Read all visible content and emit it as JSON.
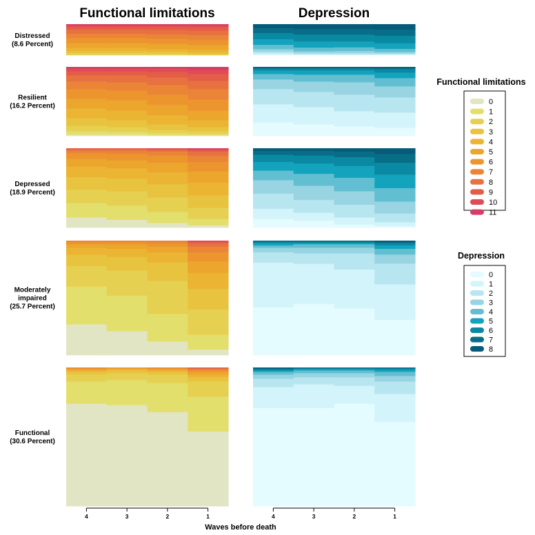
{
  "chart_data": {
    "type": "stacked-area-grid",
    "column_titles": [
      "Functional limitations",
      "Depression"
    ],
    "x_title": "Waves before death",
    "x_ticks": [
      "4",
      "3",
      "2",
      "1"
    ],
    "rows": [
      {
        "label_lines": [
          "Distressed",
          "(8.6 Percent)"
        ],
        "functional_limitations": [
          [
            0,
            0.02,
            0.05,
            0.07,
            0.1,
            0.16,
            0.16,
            0.14,
            0.13,
            0.09,
            0.05,
            0.03
          ],
          [
            0,
            0.02,
            0.05,
            0.07,
            0.1,
            0.16,
            0.16,
            0.14,
            0.13,
            0.09,
            0.05,
            0.03
          ],
          [
            0,
            0.02,
            0.04,
            0.06,
            0.09,
            0.16,
            0.16,
            0.15,
            0.14,
            0.1,
            0.05,
            0.03
          ],
          [
            0,
            0.01,
            0.03,
            0.05,
            0.09,
            0.15,
            0.16,
            0.16,
            0.15,
            0.11,
            0.06,
            0.03
          ]
        ],
        "depression": [
          [
            0.02,
            0.04,
            0.06,
            0.08,
            0.14,
            0.18,
            0.2,
            0.16,
            0.12
          ],
          [
            0.01,
            0.02,
            0.04,
            0.06,
            0.12,
            0.2,
            0.22,
            0.18,
            0.15
          ],
          [
            0.01,
            0.02,
            0.04,
            0.07,
            0.12,
            0.19,
            0.22,
            0.18,
            0.15
          ],
          [
            0.01,
            0.02,
            0.03,
            0.05,
            0.1,
            0.18,
            0.24,
            0.2,
            0.17
          ]
        ]
      },
      {
        "label_lines": [
          "Resilient",
          "(16.2 Percent)"
        ],
        "functional_limitations": [
          [
            0.02,
            0.05,
            0.08,
            0.11,
            0.14,
            0.14,
            0.14,
            0.11,
            0.09,
            0.06,
            0.04,
            0.02
          ],
          [
            0.02,
            0.04,
            0.07,
            0.1,
            0.14,
            0.15,
            0.14,
            0.12,
            0.1,
            0.06,
            0.04,
            0.02
          ],
          [
            0.01,
            0.03,
            0.05,
            0.08,
            0.13,
            0.15,
            0.15,
            0.14,
            0.11,
            0.08,
            0.05,
            0.02
          ],
          [
            0.01,
            0.02,
            0.04,
            0.06,
            0.1,
            0.14,
            0.16,
            0.15,
            0.12,
            0.1,
            0.06,
            0.04
          ]
        ],
        "depression": [
          [
            0.2,
            0.26,
            0.22,
            0.14,
            0.08,
            0.05,
            0.03,
            0.01,
            0.01
          ],
          [
            0.17,
            0.25,
            0.22,
            0.15,
            0.1,
            0.06,
            0.03,
            0.01,
            0.01
          ],
          [
            0.14,
            0.22,
            0.24,
            0.18,
            0.11,
            0.06,
            0.03,
            0.01,
            0.01
          ],
          [
            0.12,
            0.22,
            0.22,
            0.16,
            0.12,
            0.08,
            0.05,
            0.02,
            0.01
          ]
        ]
      },
      {
        "label_lines": [
          "Depressed",
          "(18.9 Percent)"
        ],
        "functional_limitations": [
          [
            0.13,
            0.18,
            0.17,
            0.16,
            0.13,
            0.1,
            0.07,
            0.03,
            0.02,
            0.01,
            0,
            0
          ],
          [
            0.1,
            0.18,
            0.18,
            0.16,
            0.13,
            0.1,
            0.08,
            0.04,
            0.02,
            0.01,
            0,
            0
          ],
          [
            0.06,
            0.14,
            0.18,
            0.17,
            0.15,
            0.12,
            0.09,
            0.05,
            0.02,
            0.01,
            0.01,
            0
          ],
          [
            0.03,
            0.08,
            0.14,
            0.16,
            0.16,
            0.14,
            0.12,
            0.08,
            0.05,
            0.02,
            0.01,
            0.01
          ]
        ],
        "depression": [
          [
            0.11,
            0.13,
            0.19,
            0.17,
            0.12,
            0.11,
            0.09,
            0.05,
            0.03
          ],
          [
            0.09,
            0.1,
            0.16,
            0.18,
            0.15,
            0.13,
            0.1,
            0.06,
            0.03
          ],
          [
            0.04,
            0.09,
            0.16,
            0.17,
            0.17,
            0.15,
            0.11,
            0.07,
            0.04
          ],
          [
            0.02,
            0.05,
            0.11,
            0.15,
            0.17,
            0.17,
            0.15,
            0.11,
            0.07
          ]
        ]
      },
      {
        "label_lines": [
          "Moderately",
          "impaired",
          "(25.7 Percent)"
        ],
        "functional_limitations": [
          [
            0.27,
            0.33,
            0.18,
            0.1,
            0.06,
            0.03,
            0.02,
            0.01,
            0,
            0,
            0,
            0
          ],
          [
            0.21,
            0.31,
            0.22,
            0.12,
            0.07,
            0.04,
            0.02,
            0.01,
            0,
            0,
            0,
            0
          ],
          [
            0.12,
            0.24,
            0.29,
            0.16,
            0.09,
            0.05,
            0.03,
            0.02,
            0,
            0,
            0,
            0
          ],
          [
            0.05,
            0.13,
            0.22,
            0.18,
            0.14,
            0.1,
            0.08,
            0.05,
            0.03,
            0.01,
            0.01,
            0
          ]
        ],
        "depression": [
          [
            0.42,
            0.39,
            0.09,
            0.04,
            0.02,
            0.02,
            0.01,
            0.01,
            0
          ],
          [
            0.45,
            0.35,
            0.09,
            0.05,
            0.03,
            0.01,
            0.01,
            0.01,
            0
          ],
          [
            0.41,
            0.34,
            0.14,
            0.05,
            0.03,
            0.01,
            0.01,
            0.01,
            0
          ],
          [
            0.31,
            0.31,
            0.18,
            0.08,
            0.05,
            0.03,
            0.02,
            0.01,
            0.01
          ]
        ]
      },
      {
        "label_lines": [
          "Functional",
          "(30.6 Percent)"
        ],
        "functional_limitations": [
          [
            0.74,
            0.16,
            0.05,
            0.02,
            0.01,
            0.01,
            0.005,
            0.005,
            0,
            0,
            0,
            0
          ],
          [
            0.73,
            0.18,
            0.05,
            0.02,
            0.01,
            0.005,
            0.005,
            0,
            0,
            0,
            0,
            0
          ],
          [
            0.68,
            0.21,
            0.06,
            0.02,
            0.01,
            0.01,
            0.005,
            0.005,
            0,
            0,
            0,
            0
          ],
          [
            0.54,
            0.25,
            0.11,
            0.03,
            0.02,
            0.02,
            0.01,
            0.01,
            0.005,
            0.005,
            0,
            0
          ]
        ],
        "depression": [
          [
            0.71,
            0.15,
            0.06,
            0.03,
            0.02,
            0.01,
            0.01,
            0.005,
            0.005
          ],
          [
            0.71,
            0.17,
            0.05,
            0.03,
            0.02,
            0.01,
            0.005,
            0.005,
            0
          ],
          [
            0.74,
            0.13,
            0.06,
            0.03,
            0.02,
            0.01,
            0.005,
            0.005,
            0
          ],
          [
            0.61,
            0.2,
            0.09,
            0.04,
            0.03,
            0.015,
            0.01,
            0.005,
            0
          ]
        ]
      }
    ],
    "legends": [
      {
        "title": "Functional limitations",
        "labels": [
          "0",
          "1",
          "2",
          "3",
          "4",
          "5",
          "6",
          "7",
          "8",
          "9",
          "10",
          "11"
        ],
        "colors": [
          "#e1e5c3",
          "#e3df6c",
          "#e6d052",
          "#e8c33f",
          "#ebb433",
          "#eca52d",
          "#ec952f",
          "#ea8537",
          "#e77140",
          "#e45d48",
          "#df4b56",
          "#d63c65"
        ]
      },
      {
        "title": "Depression",
        "labels": [
          "0",
          "1",
          "2",
          "3",
          "4",
          "5",
          "6",
          "7",
          "8"
        ],
        "colors": [
          "#e4fbff",
          "#d2f4fa",
          "#b8e6f0",
          "#99d4e3",
          "#62bfd1",
          "#14a3bc",
          "#0a89a2",
          "#086e88",
          "#055b78"
        ]
      }
    ]
  }
}
